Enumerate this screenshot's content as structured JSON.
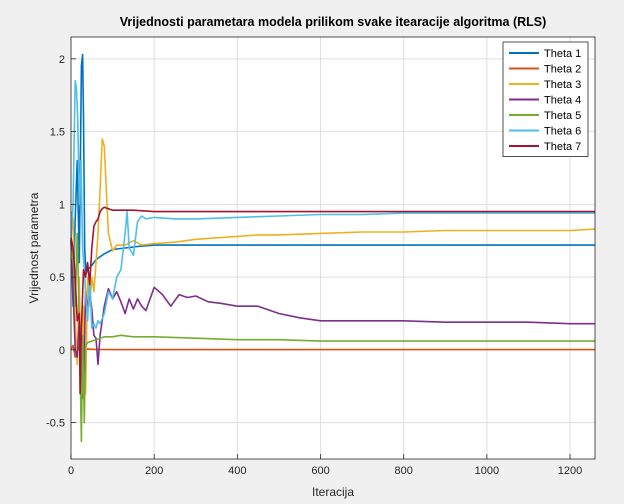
{
  "chart_data": {
    "type": "line",
    "title": "Vrijednosti parametara modela prilikom svake itearacije algoritma (RLS)",
    "xlabel": "Iteracija",
    "ylabel": "Vrijednost parametra",
    "xlim": [
      0,
      1260
    ],
    "ylim": [
      -0.75,
      2.15
    ],
    "xticks": [
      0,
      200,
      400,
      600,
      800,
      1000,
      1200
    ],
    "yticks": [
      -0.5,
      0,
      0.5,
      1,
      1.5,
      2
    ],
    "ytick_labels": [
      "-0.5",
      "0",
      "0.5",
      "1",
      "1.5",
      "2"
    ],
    "grid": true,
    "legend_position": "top-right",
    "series": [
      {
        "name": "Theta 1",
        "color": "#0072BD",
        "x": [
          0,
          5,
          10,
          15,
          20,
          25,
          28,
          30,
          33,
          36,
          40,
          50,
          60,
          80,
          100,
          130,
          160,
          200,
          300,
          500,
          800,
          1000,
          1260
        ],
        "y": [
          0.76,
          0.3,
          0.9,
          1.3,
          0.6,
          1.95,
          2.03,
          1.6,
          0.7,
          0.52,
          0.55,
          0.58,
          0.62,
          0.66,
          0.69,
          0.7,
          0.71,
          0.72,
          0.72,
          0.72,
          0.72,
          0.72,
          0.72
        ]
      },
      {
        "name": "Theta 2",
        "color": "#D95319",
        "x": [
          0,
          5,
          10,
          20,
          30,
          40,
          60,
          100,
          200,
          400,
          800,
          1260
        ],
        "y": [
          0.0,
          0.03,
          -0.05,
          0.02,
          0.0,
          0.005,
          0.003,
          0.002,
          0.002,
          0.002,
          0.002,
          0.002
        ]
      },
      {
        "name": "Theta 3",
        "color": "#EDB120",
        "x": [
          0,
          5,
          10,
          15,
          20,
          25,
          30,
          35,
          40,
          45,
          50,
          55,
          60,
          65,
          70,
          75,
          80,
          85,
          90,
          100,
          110,
          130,
          150,
          170,
          200,
          250,
          300,
          350,
          400,
          450,
          500,
          600,
          700,
          800,
          900,
          1000,
          1100,
          1200,
          1260
        ],
        "y": [
          0.95,
          0.9,
          0.2,
          -0.1,
          0.5,
          -0.35,
          0.3,
          -0.3,
          0.5,
          0.3,
          0.5,
          0.4,
          0.6,
          0.8,
          1.1,
          1.45,
          1.4,
          1.1,
          0.8,
          0.68,
          0.72,
          0.72,
          0.75,
          0.72,
          0.73,
          0.74,
          0.76,
          0.77,
          0.78,
          0.79,
          0.79,
          0.8,
          0.81,
          0.81,
          0.82,
          0.82,
          0.82,
          0.82,
          0.83
        ]
      },
      {
        "name": "Theta 4",
        "color": "#7E2F8E",
        "x": [
          0,
          5,
          10,
          15,
          20,
          25,
          30,
          35,
          40,
          45,
          50,
          55,
          60,
          65,
          70,
          75,
          80,
          90,
          100,
          110,
          120,
          130,
          140,
          150,
          160,
          170,
          180,
          200,
          220,
          240,
          260,
          280,
          300,
          330,
          360,
          400,
          450,
          500,
          550,
          600,
          700,
          800,
          900,
          1000,
          1100,
          1200,
          1260
        ],
        "y": [
          0.75,
          0.4,
          0.0,
          -0.05,
          0.2,
          -0.35,
          -0.3,
          0.4,
          0.28,
          0.4,
          0.28,
          0.1,
          0.08,
          -0.1,
          0.1,
          0.2,
          0.3,
          0.42,
          0.35,
          0.4,
          0.33,
          0.25,
          0.35,
          0.28,
          0.35,
          0.3,
          0.27,
          0.43,
          0.38,
          0.3,
          0.38,
          0.36,
          0.37,
          0.33,
          0.32,
          0.3,
          0.3,
          0.25,
          0.22,
          0.2,
          0.2,
          0.2,
          0.19,
          0.19,
          0.19,
          0.18,
          0.18
        ]
      },
      {
        "name": "Theta 5",
        "color": "#77AC30",
        "x": [
          0,
          5,
          10,
          15,
          20,
          25,
          28,
          32,
          35,
          40,
          50,
          60,
          80,
          100,
          120,
          150,
          200,
          300,
          400,
          500,
          600,
          800,
          1000,
          1260
        ],
        "y": [
          0.62,
          0.7,
          0.3,
          0.8,
          0.2,
          -0.63,
          0.1,
          -0.5,
          0.03,
          0.05,
          0.06,
          0.07,
          0.09,
          0.09,
          0.1,
          0.09,
          0.09,
          0.08,
          0.07,
          0.07,
          0.06,
          0.06,
          0.06,
          0.06
        ]
      },
      {
        "name": "Theta 6",
        "color": "#4DBEEE",
        "x": [
          0,
          5,
          8,
          10,
          13,
          16,
          20,
          24,
          28,
          32,
          36,
          40,
          45,
          50,
          55,
          60,
          65,
          70,
          80,
          90,
          100,
          110,
          120,
          130,
          135,
          140,
          150,
          160,
          170,
          180,
          200,
          250,
          300,
          400,
          500,
          600,
          700,
          800,
          900,
          1000,
          1260
        ],
        "y": [
          0.75,
          1.0,
          1.5,
          1.85,
          1.8,
          1.6,
          1.0,
          1.3,
          0.7,
          0.55,
          0.35,
          0.2,
          0.5,
          0.15,
          0.18,
          0.15,
          0.2,
          0.18,
          0.25,
          0.4,
          0.35,
          0.5,
          0.55,
          0.8,
          0.95,
          0.7,
          0.65,
          0.88,
          0.92,
          0.9,
          0.91,
          0.9,
          0.9,
          0.91,
          0.92,
          0.93,
          0.93,
          0.94,
          0.94,
          0.94,
          0.94
        ]
      },
      {
        "name": "Theta 7",
        "color": "#A2142F",
        "x": [
          0,
          5,
          10,
          15,
          20,
          22,
          25,
          30,
          35,
          40,
          45,
          50,
          55,
          60,
          65,
          70,
          75,
          80,
          90,
          100,
          150,
          200,
          300,
          400,
          600,
          800,
          1000,
          1260
        ],
        "y": [
          0.77,
          0.7,
          0.5,
          0.2,
          0.25,
          -0.3,
          0.15,
          0.55,
          0.5,
          0.6,
          0.45,
          0.7,
          0.85,
          0.88,
          0.9,
          0.95,
          0.97,
          0.98,
          0.97,
          0.96,
          0.96,
          0.95,
          0.95,
          0.95,
          0.95,
          0.95,
          0.95,
          0.95
        ]
      }
    ]
  }
}
